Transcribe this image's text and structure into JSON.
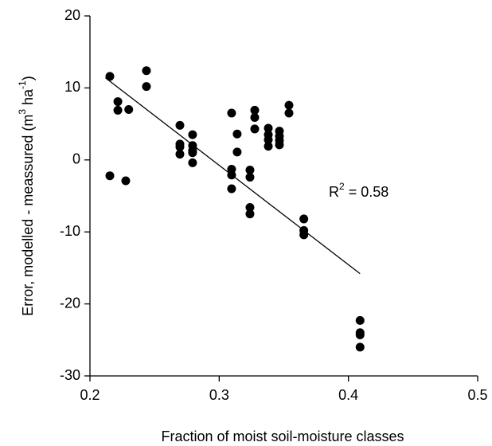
{
  "chart_data": {
    "type": "scatter",
    "xlabel": "Fraction of moist soil-moisture classes",
    "ylabel_parts": [
      "Error, modelled - meassured (m",
      "3",
      " ha",
      "-1",
      ")"
    ],
    "annotation_parts": [
      "R",
      "2",
      " = 0.58"
    ],
    "color": "#000000",
    "x": [
      0.2154,
      0.2154,
      0.2216,
      0.2216,
      0.23,
      0.2277,
      0.2437,
      0.2437,
      0.2696,
      0.2696,
      0.2696,
      0.2696,
      0.2794,
      0.2794,
      0.2794,
      0.2794,
      0.2794,
      0.3096,
      0.3096,
      0.3096,
      0.3096,
      0.3139,
      0.3139,
      0.3238,
      0.3238,
      0.3238,
      0.3238,
      0.3275,
      0.3275,
      0.3275,
      0.338,
      0.338,
      0.338,
      0.338,
      0.3466,
      0.3466,
      0.3466,
      0.3466,
      0.354,
      0.354,
      0.3655,
      0.3655,
      0.3655,
      0.409,
      0.409,
      0.409,
      0.409
    ],
    "y": [
      11.6,
      -2.2,
      8.1,
      6.9,
      7.0,
      -2.9,
      12.4,
      10.2,
      4.8,
      2.2,
      1.8,
      0.8,
      3.5,
      2.0,
      1.3,
      1.0,
      -0.4,
      6.5,
      -1.3,
      -2.1,
      -4.0,
      1.1,
      3.6,
      -1.4,
      -2.4,
      -6.6,
      -7.5,
      6.9,
      5.9,
      4.3,
      4.4,
      3.5,
      2.8,
      1.9,
      4.0,
      3.3,
      2.7,
      2.1,
      7.6,
      6.5,
      -8.2,
      -9.8,
      -10.4,
      -22.3,
      -24.0,
      -24.3,
      -26.0
    ],
    "trend_line": {
      "x": [
        0.212,
        0.409
      ],
      "y": [
        11.4,
        -15.8
      ]
    },
    "xlim": [
      0.2,
      0.5
    ],
    "xticks": [
      0.2,
      0.3,
      0.4,
      0.5
    ],
    "ylim": [
      -30,
      20
    ],
    "yticks": [
      -30,
      -20,
      -10,
      0,
      10,
      20
    ]
  }
}
